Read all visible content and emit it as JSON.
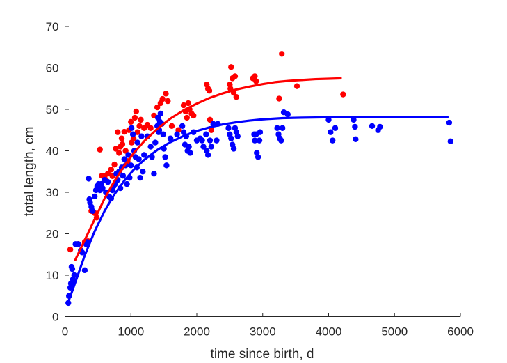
{
  "chart_data": {
    "type": "scatter",
    "title": "",
    "xlabel": "time since birth, d",
    "ylabel": "total length, cm",
    "xlim": [
      0,
      6000
    ],
    "ylim": [
      0,
      70
    ],
    "xticks": [
      0,
      1000,
      2000,
      3000,
      4000,
      5000,
      6000
    ],
    "yticks": [
      0,
      10,
      20,
      30,
      40,
      50,
      60,
      70
    ],
    "grid": false,
    "legend": "none",
    "series": [
      {
        "name": "red",
        "color": "#ff0000",
        "points": [
          [
            80,
            16.2
          ],
          [
            200,
            17.5
          ],
          [
            300,
            18.0
          ],
          [
            350,
            18.2
          ],
          [
            400,
            25.5
          ],
          [
            450,
            25.0
          ],
          [
            480,
            23.9
          ],
          [
            530,
            40.3
          ],
          [
            560,
            34.0
          ],
          [
            600,
            33.9
          ],
          [
            620,
            33.0
          ],
          [
            650,
            34.5
          ],
          [
            700,
            35.5
          ],
          [
            720,
            33.9
          ],
          [
            750,
            36.7
          ],
          [
            770,
            40.5
          ],
          [
            800,
            44.5
          ],
          [
            820,
            39.5
          ],
          [
            840,
            41.0
          ],
          [
            860,
            43.0
          ],
          [
            870,
            41.6
          ],
          [
            900,
            44.6
          ],
          [
            920,
            40.0
          ],
          [
            950,
            37.5
          ],
          [
            970,
            45.0
          ],
          [
            1000,
            47.0
          ],
          [
            1010,
            42.0
          ],
          [
            1040,
            43.0
          ],
          [
            1060,
            48.0
          ],
          [
            1080,
            49.5
          ],
          [
            1100,
            44.5
          ],
          [
            1130,
            46.0
          ],
          [
            1150,
            47.5
          ],
          [
            1200,
            45.5
          ],
          [
            1250,
            46.3
          ],
          [
            1300,
            45.5
          ],
          [
            1350,
            48.5
          ],
          [
            1400,
            50.5
          ],
          [
            1450,
            51.5
          ],
          [
            1480,
            52.5
          ],
          [
            1530,
            53.8
          ],
          [
            1560,
            52.0
          ],
          [
            1620,
            46.0
          ],
          [
            1720,
            45.0
          ],
          [
            1800,
            51.0
          ],
          [
            1830,
            49.5
          ],
          [
            1850,
            48.0
          ],
          [
            1870,
            51.5
          ],
          [
            1890,
            50.0
          ],
          [
            1920,
            49.0
          ],
          [
            1950,
            48.5
          ],
          [
            2150,
            56.0
          ],
          [
            2170,
            55.0
          ],
          [
            2190,
            54.5
          ],
          [
            2200,
            47.5
          ],
          [
            2220,
            45.0
          ],
          [
            2500,
            56.0
          ],
          [
            2510,
            55.0
          ],
          [
            2520,
            60.2
          ],
          [
            2540,
            57.5
          ],
          [
            2560,
            54.0
          ],
          [
            2580,
            58.0
          ],
          [
            2600,
            53.0
          ],
          [
            2850,
            57.5
          ],
          [
            2880,
            58.0
          ],
          [
            2900,
            56.8
          ],
          [
            3250,
            52.6
          ],
          [
            3290,
            63.4
          ],
          [
            3520,
            55.6
          ],
          [
            4220,
            53.6
          ]
        ],
        "fit": [
          [
            150,
            13.5
          ],
          [
            300,
            18.5
          ],
          [
            450,
            23.5
          ],
          [
            600,
            28.5
          ],
          [
            750,
            32.7
          ],
          [
            900,
            36.4
          ],
          [
            1050,
            39.6
          ],
          [
            1200,
            42.3
          ],
          [
            1400,
            45.3
          ],
          [
            1600,
            47.8
          ],
          [
            1800,
            49.8
          ],
          [
            2000,
            51.4
          ],
          [
            2200,
            52.8
          ],
          [
            2400,
            53.9
          ],
          [
            2600,
            54.8
          ],
          [
            2800,
            55.5
          ],
          [
            3000,
            56.1
          ],
          [
            3200,
            56.6
          ],
          [
            3400,
            56.9
          ],
          [
            3600,
            57.1
          ],
          [
            3800,
            57.3
          ],
          [
            4000,
            57.4
          ],
          [
            4200,
            57.5
          ]
        ]
      },
      {
        "name": "blue",
        "color": "#0000ff",
        "points": [
          [
            50,
            3.3
          ],
          [
            60,
            5.0
          ],
          [
            80,
            7.0
          ],
          [
            90,
            8.0
          ],
          [
            100,
            12.0
          ],
          [
            110,
            11.5
          ],
          [
            120,
            9.0
          ],
          [
            130,
            8.5
          ],
          [
            140,
            10.0
          ],
          [
            160,
            17.5
          ],
          [
            200,
            17.5
          ],
          [
            240,
            16.0
          ],
          [
            260,
            15.5
          ],
          [
            300,
            11.2
          ],
          [
            320,
            17.5
          ],
          [
            340,
            18.0
          ],
          [
            360,
            33.3
          ],
          [
            370,
            28.3
          ],
          [
            380,
            27.5
          ],
          [
            400,
            26.5
          ],
          [
            420,
            25.5
          ],
          [
            450,
            29.0
          ],
          [
            470,
            30.5
          ],
          [
            490,
            31.5
          ],
          [
            510,
            32.0
          ],
          [
            530,
            30.5
          ],
          [
            550,
            32.0
          ],
          [
            570,
            31.0
          ],
          [
            600,
            33.0
          ],
          [
            620,
            30.0
          ],
          [
            650,
            32.5
          ],
          [
            670,
            29.0
          ],
          [
            700,
            28.5
          ],
          [
            720,
            30.5
          ],
          [
            740,
            31.5
          ],
          [
            760,
            32.0
          ],
          [
            780,
            34.5
          ],
          [
            800,
            33.0
          ],
          [
            820,
            35.0
          ],
          [
            840,
            31.0
          ],
          [
            860,
            36.0
          ],
          [
            880,
            34.0
          ],
          [
            900,
            38.0
          ],
          [
            920,
            36.5
          ],
          [
            940,
            32.0
          ],
          [
            960,
            39.0
          ],
          [
            980,
            33.5
          ],
          [
            1000,
            36.5
          ],
          [
            1010,
            45.5
          ],
          [
            1030,
            44.0
          ],
          [
            1050,
            40.0
          ],
          [
            1070,
            38.5
          ],
          [
            1090,
            36.0
          ],
          [
            1100,
            42.0
          ],
          [
            1120,
            38.0
          ],
          [
            1140,
            33.5
          ],
          [
            1160,
            43.5
          ],
          [
            1180,
            35.0
          ],
          [
            1200,
            39.0
          ],
          [
            1250,
            43.5
          ],
          [
            1300,
            41.0
          ],
          [
            1320,
            38.5
          ],
          [
            1350,
            34.5
          ],
          [
            1370,
            42.0
          ],
          [
            1400,
            46.0
          ],
          [
            1410,
            48.0
          ],
          [
            1420,
            44.5
          ],
          [
            1430,
            45.0
          ],
          [
            1440,
            47.0
          ],
          [
            1450,
            49.0
          ],
          [
            1470,
            46.5
          ],
          [
            1490,
            44.0
          ],
          [
            1500,
            40.5
          ],
          [
            1520,
            38.5
          ],
          [
            1540,
            36.5
          ],
          [
            1600,
            43.0
          ],
          [
            1700,
            44.0
          ],
          [
            1780,
            46.0
          ],
          [
            1800,
            44.5
          ],
          [
            1820,
            41.5
          ],
          [
            1840,
            43.5
          ],
          [
            1860,
            40.0
          ],
          [
            1880,
            41.0
          ],
          [
            1900,
            39.5
          ],
          [
            1950,
            44.5
          ],
          [
            2000,
            42.5
          ],
          [
            2050,
            43.0
          ],
          [
            2080,
            42.5
          ],
          [
            2100,
            41.0
          ],
          [
            2140,
            44.0
          ],
          [
            2150,
            40.0
          ],
          [
            2170,
            39.0
          ],
          [
            2200,
            42.5
          ],
          [
            2220,
            41.0
          ],
          [
            2250,
            46.5
          ],
          [
            2300,
            42.5
          ],
          [
            2320,
            46.5
          ],
          [
            2480,
            45.5
          ],
          [
            2500,
            44.0
          ],
          [
            2520,
            43.0
          ],
          [
            2540,
            41.5
          ],
          [
            2560,
            40.5
          ],
          [
            2580,
            45.5
          ],
          [
            2600,
            44.5
          ],
          [
            2620,
            43.5
          ],
          [
            2870,
            44.0
          ],
          [
            2880,
            42.5
          ],
          [
            2900,
            44.0
          ],
          [
            2910,
            39.5
          ],
          [
            2930,
            38.5
          ],
          [
            2950,
            42.5
          ],
          [
            2960,
            44.5
          ],
          [
            3220,
            45.5
          ],
          [
            3240,
            44.0
          ],
          [
            3260,
            43.0
          ],
          [
            3280,
            42.5
          ],
          [
            3300,
            45.5
          ],
          [
            3320,
            49.3
          ],
          [
            3380,
            48.8
          ],
          [
            4000,
            47.5
          ],
          [
            4030,
            44.5
          ],
          [
            4060,
            42.5
          ],
          [
            4100,
            45.5
          ],
          [
            4380,
            47.5
          ],
          [
            4400,
            45.8
          ],
          [
            4410,
            42.8
          ],
          [
            4660,
            46.0
          ],
          [
            4750,
            45.0
          ],
          [
            4780,
            45.8
          ],
          [
            5830,
            46.8
          ],
          [
            5850,
            42.3
          ]
        ],
        "fit": [
          [
            60,
            4.0
          ],
          [
            150,
            8.0
          ],
          [
            300,
            14.8
          ],
          [
            450,
            20.6
          ],
          [
            600,
            25.5
          ],
          [
            750,
            29.5
          ],
          [
            900,
            32.8
          ],
          [
            1050,
            35.6
          ],
          [
            1200,
            37.8
          ],
          [
            1400,
            40.2
          ],
          [
            1600,
            42.1
          ],
          [
            1800,
            43.6
          ],
          [
            2000,
            44.8
          ],
          [
            2200,
            45.7
          ],
          [
            2400,
            46.4
          ],
          [
            2600,
            46.9
          ],
          [
            2800,
            47.3
          ],
          [
            3000,
            47.6
          ],
          [
            3300,
            47.9
          ],
          [
            3600,
            48.0
          ],
          [
            4000,
            48.1
          ],
          [
            4500,
            48.2
          ],
          [
            5000,
            48.2
          ],
          [
            5500,
            48.2
          ],
          [
            5820,
            48.2
          ]
        ]
      }
    ]
  }
}
